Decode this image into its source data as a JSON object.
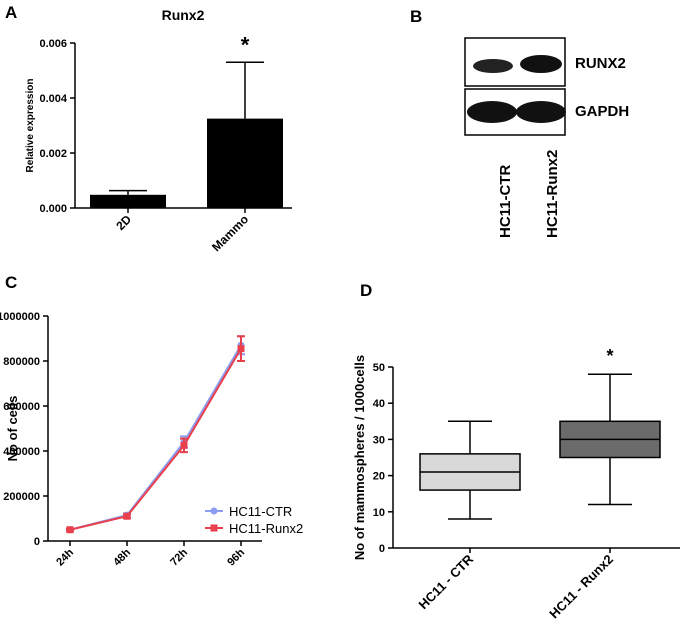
{
  "chart_data": [
    {
      "type": "bar",
      "panel_label": "A",
      "title": "Runx2",
      "y_label": "Relative expression",
      "categories": [
        "2D",
        "Mammo"
      ],
      "values": [
        0.00048,
        0.00325
      ],
      "errors": [
        0.00015,
        0.00205
      ],
      "color": "#000000",
      "ylim": [
        0,
        0.006
      ],
      "yticks": [
        {
          "value": 0,
          "label": "0.000"
        },
        {
          "value": 0.002,
          "label": "0.002"
        },
        {
          "value": 0.004,
          "label": "0.004"
        },
        {
          "value": 0.006,
          "label": "0.006"
        }
      ],
      "annotations": [
        {
          "text": "*",
          "category": 1
        }
      ]
    },
    {
      "type": "line",
      "panel_label": "C",
      "y_label": "No of cells",
      "categories": [
        "24h",
        "48h",
        "72h",
        "96h"
      ],
      "series": [
        {
          "name": "HC11-CTR",
          "color": "#8c9cf0",
          "values": [
            50000,
            115000,
            440000,
            870000
          ],
          "errors": [
            5000,
            8000,
            25000,
            40000
          ]
        },
        {
          "name": "HC11-Runx2",
          "color": "#e8404c",
          "values": [
            50000,
            110000,
            425000,
            855000
          ],
          "errors": [
            4000,
            8000,
            30000,
            55000
          ]
        }
      ],
      "ylim": [
        0,
        1000000
      ],
      "yticks": [
        0,
        200000,
        400000,
        600000,
        800000,
        1000000
      ],
      "legend": "lower-right"
    },
    {
      "type": "box",
      "panel_label": "D",
      "y_label": "No of mammospheres / 1000cells",
      "categories": [
        "HC11 - CTR",
        "HC11 - Runx2"
      ],
      "boxes": [
        {
          "min": 8,
          "q1": 16,
          "median": 21,
          "q3": 26,
          "max": 35
        },
        {
          "min": 12,
          "q1": 25,
          "median": 30,
          "q3": 35,
          "max": 48
        }
      ],
      "colors": [
        "#d9d9d9",
        "#6b6b6b"
      ],
      "ylim": [
        0,
        50
      ],
      "yticks": [
        0,
        10,
        20,
        30,
        40,
        50
      ],
      "annotations": [
        {
          "text": "*",
          "category": 1
        }
      ]
    }
  ],
  "blot": {
    "panel_label": "B",
    "bands": [
      "RUNX2",
      "GAPDH"
    ],
    "lanes": [
      "HC11-CTR",
      "HC11-Runx2"
    ]
  }
}
